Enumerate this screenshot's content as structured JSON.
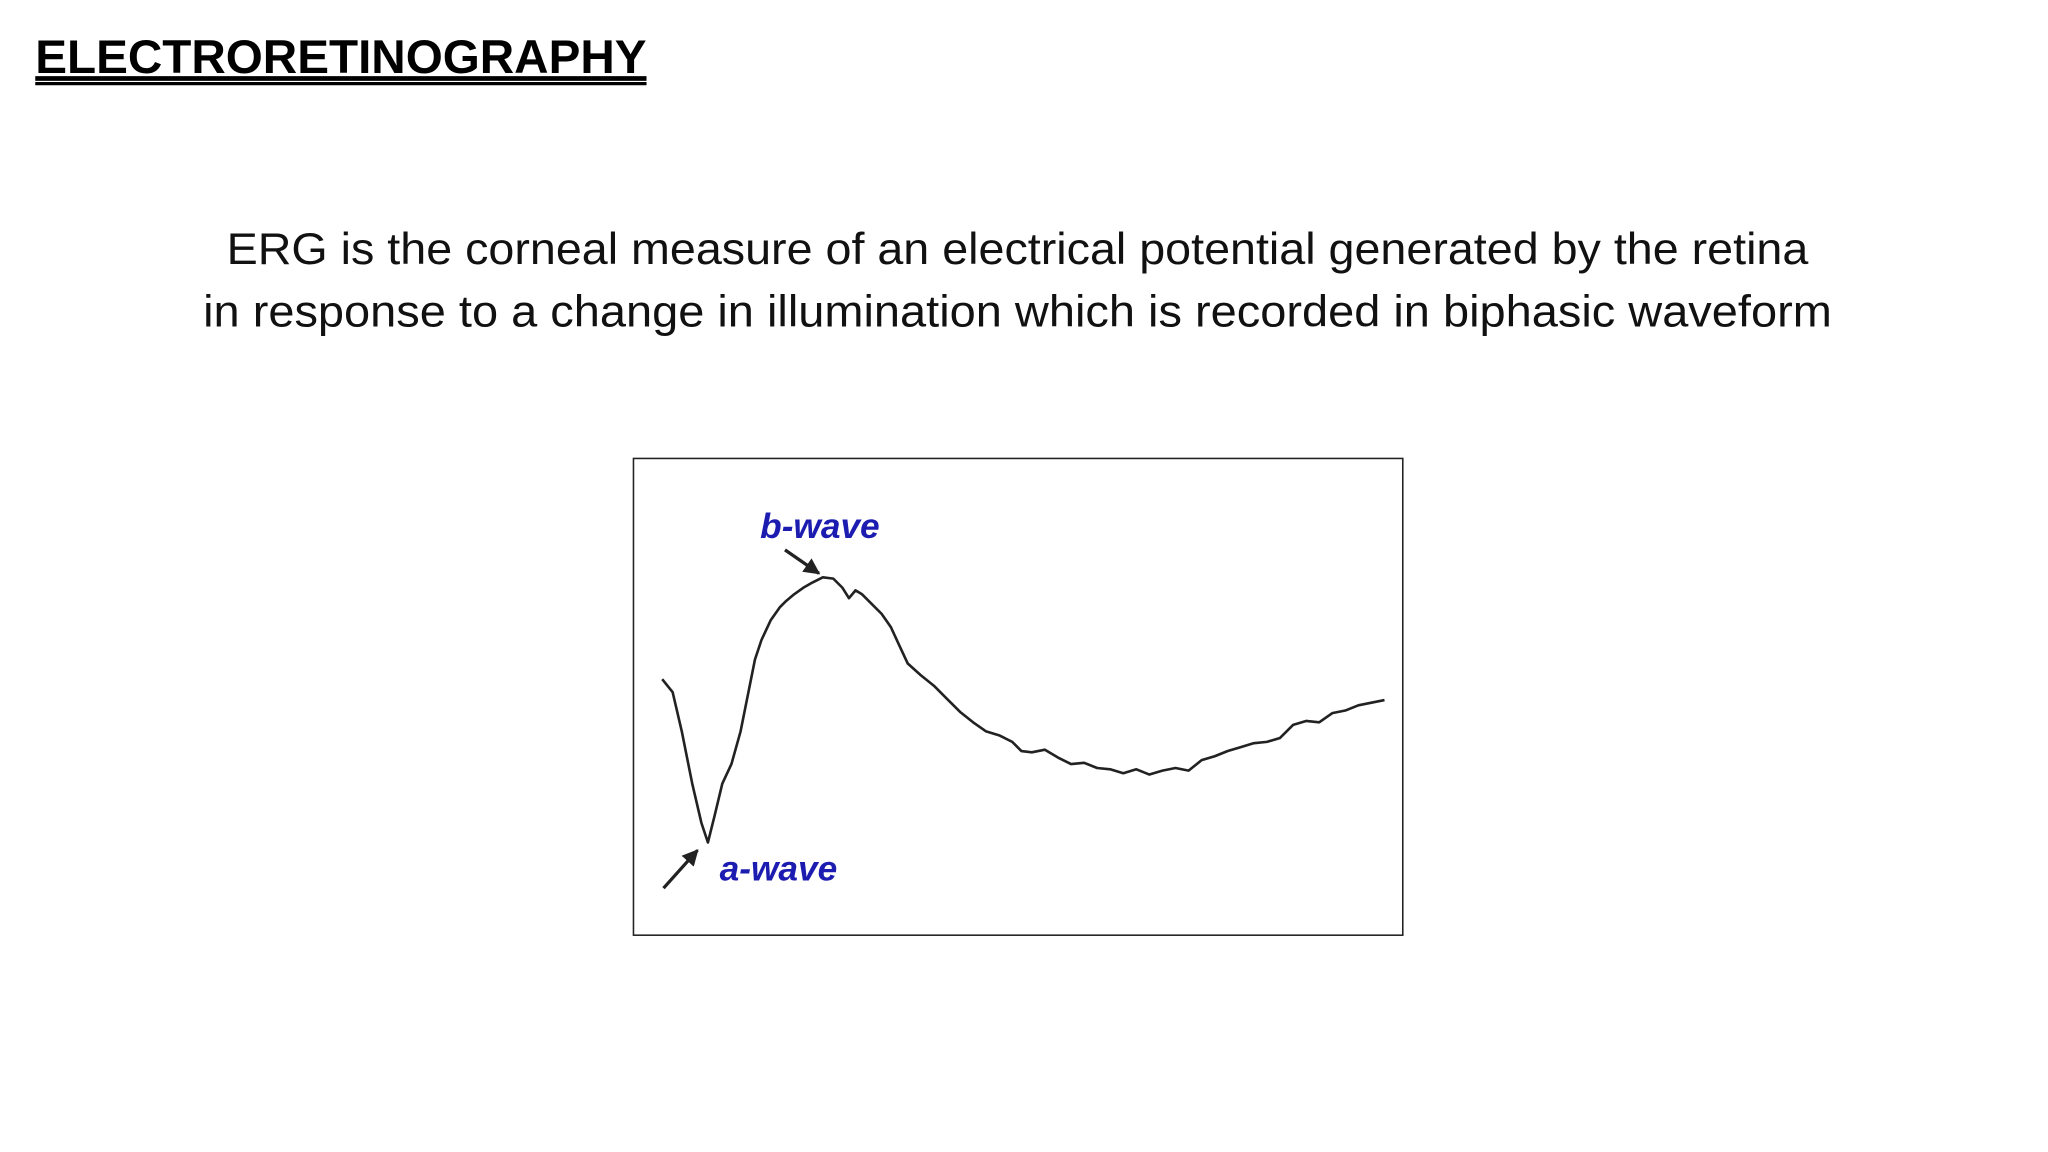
{
  "header": {
    "title": "ELECTRORETINOGRAPHY"
  },
  "body": {
    "lines": [
      "ERG is the corneal measure of an electrical potential generated by the retina",
      "in response to a change in illumination which is recorded in biphasic waveform"
    ]
  },
  "figure": {
    "b_wave_label": "b-wave",
    "a_wave_label": "a-wave"
  }
}
